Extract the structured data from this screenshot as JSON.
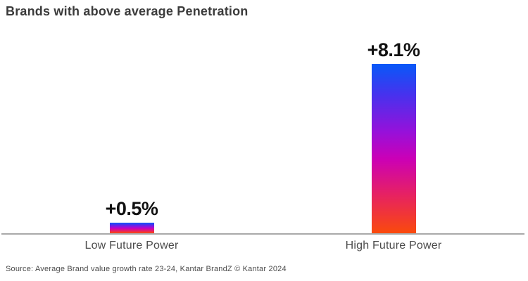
{
  "header": {
    "title": "Brands with above average Penetration"
  },
  "footer": {
    "source": "Source: Average Brand value growth rate 23-24, Kantar BrandZ © Kantar 2024"
  },
  "chart_data": {
    "type": "bar",
    "title": "Brands with above average Penetration",
    "categories": [
      "Low Future Power",
      "High Future Power"
    ],
    "values": [
      0.5,
      8.1
    ],
    "value_labels": [
      "+0.5%",
      "+8.1%"
    ],
    "xlabel": "",
    "ylabel": "",
    "ylim": [
      0,
      8.5
    ],
    "grid": false,
    "legend": "none",
    "axis_color": "#a9a9a9",
    "value_label_color": "#111111",
    "category_label_color": "#4b4b4b",
    "title_color": "#3b3b3b",
    "bar_gradient_stops": [
      {
        "color": "#0859f8",
        "pos": 0
      },
      {
        "color": "#4632ee",
        "pos": 18
      },
      {
        "color": "#9611da",
        "pos": 40
      },
      {
        "color": "#cb00b6",
        "pos": 56
      },
      {
        "color": "#e62163",
        "pos": 77
      },
      {
        "color": "#fa4a0c",
        "pos": 100
      }
    ]
  }
}
